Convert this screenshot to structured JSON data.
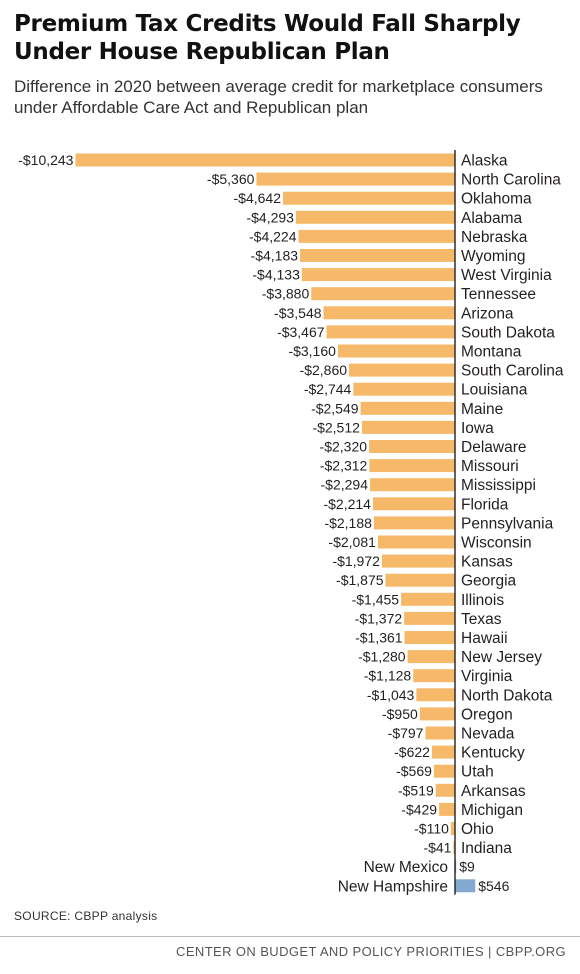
{
  "title": "Premium Tax Credits Would Fall Sharply Under House Republican Plan",
  "subtitle": "Difference in 2020 between average credit for marketplace consumers under Affordable Care Act and Republican plan",
  "source": "SOURCE:  CBPP analysis",
  "footer": "CENTER ON BUDGET AND POLICY PRIORITIES | CBPP.ORG",
  "colors": {
    "negative": "#f5b969",
    "positive": "#84a9d1",
    "axis": "#231f20"
  },
  "chart_data": {
    "type": "bar",
    "orientation": "horizontal",
    "title": "Premium Tax Credits Would Fall Sharply Under House Republican Plan",
    "subtitle": "Difference in 2020 between average credit for marketplace consumers under Affordable Care Act and Republican plan",
    "xlabel": "",
    "ylabel": "",
    "grid": false,
    "legend": "none",
    "categories": [
      "Alaska",
      "North Carolina",
      "Oklahoma",
      "Alabama",
      "Nebraska",
      "Wyoming",
      "West Virginia",
      "Tennessee",
      "Arizona",
      "South Dakota",
      "Montana",
      "South Carolina",
      "Louisiana",
      "Maine",
      "Iowa",
      "Delaware",
      "Missouri",
      "Mississippi",
      "Florida",
      "Pennsylvania",
      "Wisconsin",
      "Kansas",
      "Georgia",
      "Illinois",
      "Texas",
      "Hawaii",
      "New Jersey",
      "Virginia",
      "North Dakota",
      "Oregon",
      "Nevada",
      "Kentucky",
      "Utah",
      "Arkansas",
      "Michigan",
      "Ohio",
      "Indiana",
      "New Mexico",
      "New Hampshire"
    ],
    "values": [
      -10243,
      -5360,
      -4642,
      -4293,
      -4224,
      -4183,
      -4133,
      -3880,
      -3548,
      -3467,
      -3160,
      -2860,
      -2744,
      -2549,
      -2512,
      -2320,
      -2312,
      -2294,
      -2214,
      -2188,
      -2081,
      -1972,
      -1875,
      -1455,
      -1372,
      -1361,
      -1280,
      -1128,
      -1043,
      -950,
      -797,
      -622,
      -569,
      -519,
      -429,
      -110,
      -41,
      9,
      546
    ],
    "value_labels": [
      "-$10,243",
      "-$5,360",
      "-$4,642",
      "-$4,293",
      "-$4,224",
      "-$4,183",
      "-$4,133",
      "-$3,880",
      "-$3,548",
      "-$3,467",
      "-$3,160",
      "-$2,860",
      "-$2,744",
      "-$2,549",
      "-$2,512",
      "-$2,320",
      "-$2,312",
      "-$2,294",
      "-$2,214",
      "-$2,188",
      "-$2,081",
      "-$1,972",
      "-$1,875",
      "-$1,455",
      "-$1,372",
      "-$1,361",
      "-$1,280",
      "-$1,128",
      "-$1,043",
      "-$950",
      "-$797",
      "-$622",
      "-$569",
      "-$519",
      "-$429",
      "-$110",
      "-$41",
      "$9",
      "$546"
    ],
    "xlim": [
      -10243,
      546
    ]
  }
}
